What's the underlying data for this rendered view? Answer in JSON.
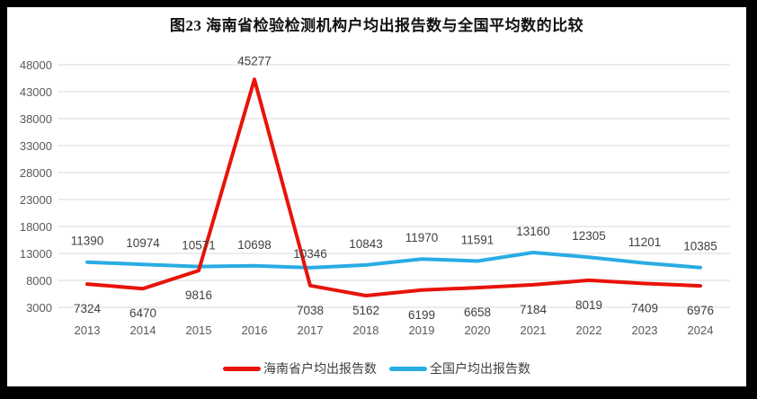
{
  "title": "图23  海南省检验检测机构户均出报告数与全国平均数的比较",
  "chart_data": {
    "type": "line",
    "title": "图23  海南省检验检测机构户均出报告数与全国平均数的比较",
    "categories": [
      "2013",
      "2014",
      "2015",
      "2016",
      "2017",
      "2018",
      "2019",
      "2020",
      "2021",
      "2022",
      "2023",
      "2024"
    ],
    "series": [
      {
        "name": "海南省户均出报告数",
        "color": "#e8130a",
        "values": [
          7324,
          6470,
          9816,
          45277,
          7038,
          5162,
          6199,
          6658,
          7184,
          8019,
          7409,
          6976
        ]
      },
      {
        "name": "全国户均出报告数",
        "color": "#29ace3",
        "values": [
          11390,
          10974,
          10571,
          10698,
          10346,
          10843,
          11970,
          11591,
          13160,
          12305,
          11201,
          10385
        ]
      }
    ],
    "y_ticks": [
      3000,
      8000,
      13000,
      18000,
      23000,
      28000,
      33000,
      38000,
      43000,
      48000
    ],
    "ylim": [
      3000,
      48000
    ],
    "grid": true,
    "show_data_labels": true,
    "legend_position": "bottom",
    "colors": {
      "gridline": "#d9d9d9",
      "axis_label": "#595959",
      "data_label": "#404040",
      "frame_border": "#000000",
      "background": "#ffffff"
    }
  }
}
